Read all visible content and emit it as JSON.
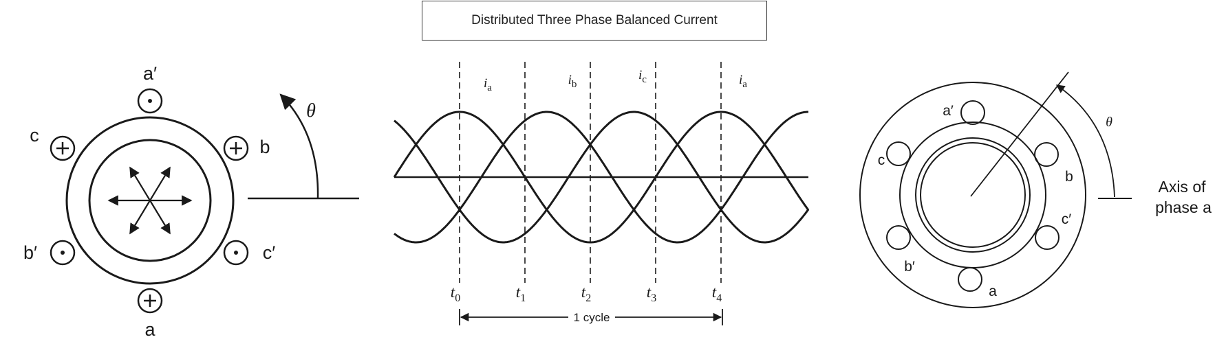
{
  "title": "Distributed Three Phase Balanced Current",
  "left_diagram": {
    "coil_labels": {
      "a_prime": "a′",
      "b": "b",
      "c_prime": "c′",
      "a": "a",
      "b_prime": "b′",
      "c": "c"
    },
    "coil_markers": {
      "a_prime": "dot",
      "b": "plus",
      "c_prime": "dot",
      "a": "plus",
      "b_prime": "dot",
      "c": "plus"
    },
    "angle_label": "θ"
  },
  "waveform": {
    "phase_labels": [
      "a",
      "b",
      "c",
      "a"
    ],
    "phase_prefix": "i",
    "time_labels": [
      {
        "t": "t",
        "sub": "0"
      },
      {
        "t": "t",
        "sub": "1"
      },
      {
        "t": "t",
        "sub": "2"
      },
      {
        "t": "t",
        "sub": "3"
      },
      {
        "t": "t",
        "sub": "4"
      }
    ],
    "cycle_label": "1 cycle"
  },
  "right_diagram": {
    "coil_labels": {
      "a_prime": "a′",
      "b": "b",
      "c_prime": "c′",
      "a": "a",
      "b_prime": "b′",
      "c": "c"
    },
    "angle_label": "θ",
    "axis_label_line1": "Axis of",
    "axis_label_line2": "phase a"
  }
}
